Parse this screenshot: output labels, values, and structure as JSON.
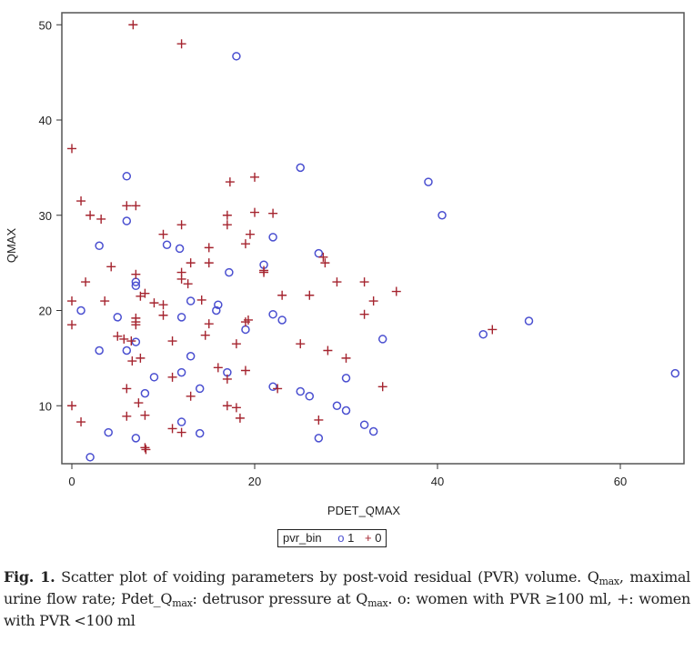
{
  "chart_data": {
    "type": "scatter",
    "xlabel": "PDET_QMAX",
    "ylabel": "QMAX",
    "xlim": [
      -1,
      67
    ],
    "ylim": [
      3.3,
      51.5
    ],
    "x_ticks": [
      0,
      20,
      40,
      60
    ],
    "y_ticks": [
      10,
      20,
      30,
      40,
      50
    ],
    "grid": false,
    "legend": {
      "title": "pvr_bin",
      "placement": "bottom",
      "entries": [
        "1",
        "0"
      ]
    },
    "series": [
      {
        "name": "1",
        "marker": "circle",
        "color": "#4a4fd0",
        "points": [
          [
            18,
            46.7
          ],
          [
            6,
            34.1
          ],
          [
            3,
            26.8
          ],
          [
            6,
            29.4
          ],
          [
            1,
            20
          ],
          [
            7,
            23
          ],
          [
            7,
            22.6
          ],
          [
            5,
            19.3
          ],
          [
            10.4,
            26.9
          ],
          [
            11.8,
            26.5
          ],
          [
            13,
            21
          ],
          [
            12,
            19.3
          ],
          [
            16,
            20.6
          ],
          [
            15.8,
            20
          ],
          [
            17.2,
            24
          ],
          [
            21,
            24.8
          ],
          [
            22,
            27.7
          ],
          [
            19,
            18
          ],
          [
            22,
            19.6
          ],
          [
            23,
            19
          ],
          [
            25,
            35
          ],
          [
            27,
            26
          ],
          [
            34,
            17
          ],
          [
            39,
            33.5
          ],
          [
            40.5,
            30
          ],
          [
            45,
            17.5
          ],
          [
            50,
            18.9
          ],
          [
            66,
            13.4
          ],
          [
            3,
            15.8
          ],
          [
            6,
            15.8
          ],
          [
            7,
            16.7
          ],
          [
            13,
            15.2
          ],
          [
            9,
            13
          ],
          [
            12,
            13.5
          ],
          [
            17,
            13.5
          ],
          [
            14,
            11.8
          ],
          [
            8,
            11.3
          ],
          [
            22,
            12
          ],
          [
            25,
            11.5
          ],
          [
            26,
            11
          ],
          [
            30,
            12.9
          ],
          [
            29,
            10
          ],
          [
            30,
            9.5
          ],
          [
            32,
            8
          ],
          [
            33,
            7.3
          ],
          [
            27,
            6.6
          ],
          [
            12,
            8.3
          ],
          [
            4,
            7.2
          ],
          [
            7,
            6.6
          ],
          [
            14,
            7.1
          ],
          [
            2,
            4.6
          ]
        ]
      },
      {
        "name": "0",
        "marker": "plus",
        "color": "#a5242f",
        "points": [
          [
            6.7,
            50
          ],
          [
            12,
            48
          ],
          [
            0,
            37
          ],
          [
            1,
            31.5
          ],
          [
            2,
            30
          ],
          [
            3.2,
            29.6
          ],
          [
            6,
            31
          ],
          [
            7,
            31
          ],
          [
            12,
            29
          ],
          [
            13,
            25
          ],
          [
            15,
            26.6
          ],
          [
            17.3,
            33.5
          ],
          [
            17,
            30
          ],
          [
            17,
            29
          ],
          [
            20,
            34
          ],
          [
            20,
            30.3
          ],
          [
            22,
            30.2
          ],
          [
            19.5,
            28
          ],
          [
            19,
            27
          ],
          [
            10,
            28
          ],
          [
            1.5,
            23
          ],
          [
            4.3,
            24.6
          ],
          [
            0,
            21
          ],
          [
            0,
            18.5
          ],
          [
            3.6,
            21
          ],
          [
            7,
            23.8
          ],
          [
            7.5,
            21.5
          ],
          [
            8,
            21.8
          ],
          [
            9,
            20.8
          ],
          [
            10,
            20.6
          ],
          [
            10,
            19.5
          ],
          [
            12,
            24
          ],
          [
            12,
            23.3
          ],
          [
            12.7,
            22.8
          ],
          [
            14.2,
            21.1
          ],
          [
            15,
            25
          ],
          [
            15,
            18.6
          ],
          [
            14.6,
            17.4
          ],
          [
            13,
            11
          ],
          [
            5,
            17.3
          ],
          [
            5.7,
            17
          ],
          [
            6.5,
            16.8
          ],
          [
            7,
            19.2
          ],
          [
            7,
            18.8
          ],
          [
            7,
            18.5
          ],
          [
            6.6,
            14.7
          ],
          [
            7.5,
            15
          ],
          [
            11,
            16.8
          ],
          [
            11,
            13
          ],
          [
            6,
            11.8
          ],
          [
            7.3,
            10.3
          ],
          [
            8,
            9
          ],
          [
            6,
            8.9
          ],
          [
            8,
            5.6
          ],
          [
            8.1,
            5.4
          ],
          [
            0,
            10
          ],
          [
            1,
            8.3
          ],
          [
            11,
            7.6
          ],
          [
            12,
            7.2
          ],
          [
            16,
            14
          ],
          [
            17,
            12.8
          ],
          [
            17,
            10
          ],
          [
            18,
            9.8
          ],
          [
            18.4,
            8.7
          ],
          [
            18,
            16.5
          ],
          [
            19,
            18.8
          ],
          [
            19,
            13.7
          ],
          [
            19.3,
            19
          ],
          [
            21,
            24.2
          ],
          [
            21,
            24
          ],
          [
            22.5,
            11.8
          ],
          [
            23,
            21.6
          ],
          [
            26,
            21.6
          ],
          [
            25,
            16.5
          ],
          [
            27.5,
            25.6
          ],
          [
            27.7,
            25
          ],
          [
            28,
            15.8
          ],
          [
            29,
            23
          ],
          [
            30,
            15
          ],
          [
            27,
            8.5
          ],
          [
            32,
            23
          ],
          [
            32,
            19.6
          ],
          [
            33,
            21
          ],
          [
            34,
            12
          ],
          [
            35.5,
            22
          ],
          [
            46,
            18
          ]
        ]
      }
    ]
  },
  "legend_symbols": {
    "one": "o",
    "zero": "+"
  },
  "caption": {
    "label": "Fig. 1.",
    "text1": " Scatter plot of voiding parameters by post-void residual (PVR) volume. Q",
    "sub1": "max",
    "text2": ", maximal urine flow rate; Pdet_Q",
    "sub2": "max",
    "text3": ": detrusor pressure at Q",
    "sub3": "max",
    "text4": ". o: women with PVR ≥100 ml, +: women with PVR <100 ml"
  }
}
